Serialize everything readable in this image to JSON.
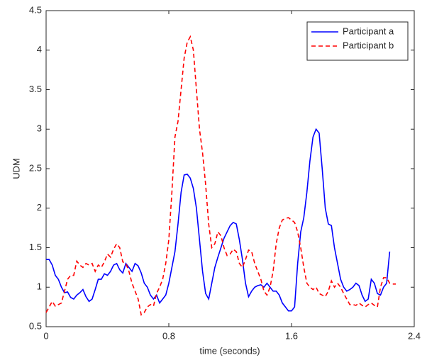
{
  "chart_data": {
    "type": "line",
    "x_label": "time (seconds)",
    "y_label": "UDM",
    "x": [
      0,
      0.02,
      0.04,
      0.06,
      0.08,
      0.1,
      0.12,
      0.14,
      0.16,
      0.18,
      0.2,
      0.22,
      0.24,
      0.26,
      0.28,
      0.3,
      0.32,
      0.34,
      0.36,
      0.38,
      0.4,
      0.42,
      0.44,
      0.46,
      0.48,
      0.5,
      0.52,
      0.54,
      0.56,
      0.58,
      0.6,
      0.62,
      0.64,
      0.66,
      0.68,
      0.7,
      0.72,
      0.74,
      0.76,
      0.78,
      0.8,
      0.82,
      0.84,
      0.86,
      0.88,
      0.9,
      0.92,
      0.94,
      0.96,
      0.98,
      1.0,
      1.02,
      1.04,
      1.06,
      1.08,
      1.1,
      1.12,
      1.14,
      1.16,
      1.18,
      1.2,
      1.22,
      1.24,
      1.26,
      1.28,
      1.3,
      1.32,
      1.34,
      1.36,
      1.38,
      1.4,
      1.42,
      1.44,
      1.46,
      1.48,
      1.5,
      1.52,
      1.54,
      1.56,
      1.58,
      1.6,
      1.62,
      1.64,
      1.66,
      1.68,
      1.7,
      1.72,
      1.74,
      1.76,
      1.78,
      1.8,
      1.82,
      1.84,
      1.86,
      1.88,
      1.9,
      1.92,
      1.94,
      1.96,
      1.98,
      2.0,
      2.02,
      2.04,
      2.06,
      2.08,
      2.1,
      2.12,
      2.14,
      2.16,
      2.18,
      2.2,
      2.22,
      2.24,
      2.26,
      2.28
    ],
    "series": [
      {
        "name": "Participant a",
        "color": "#0000ff",
        "dash": "solid",
        "values": [
          1.35,
          1.35,
          1.28,
          1.15,
          1.1,
          1.0,
          0.93,
          0.94,
          0.87,
          0.85,
          0.9,
          0.93,
          0.97,
          0.88,
          0.82,
          0.85,
          0.97,
          1.1,
          1.1,
          1.17,
          1.15,
          1.2,
          1.28,
          1.3,
          1.22,
          1.18,
          1.3,
          1.25,
          1.2,
          1.3,
          1.27,
          1.18,
          1.05,
          1.0,
          0.9,
          0.85,
          0.9,
          0.8,
          0.85,
          0.9,
          1.05,
          1.25,
          1.45,
          1.8,
          2.2,
          2.42,
          2.43,
          2.38,
          2.25,
          2.0,
          1.6,
          1.2,
          0.92,
          0.85,
          1.05,
          1.25,
          1.38,
          1.5,
          1.62,
          1.7,
          1.78,
          1.82,
          1.8,
          1.6,
          1.35,
          1.05,
          0.88,
          0.95,
          1.0,
          1.02,
          1.03,
          1.0,
          1.05,
          1.0,
          0.95,
          0.95,
          0.9,
          0.8,
          0.75,
          0.7,
          0.7,
          0.75,
          1.3,
          1.7,
          1.88,
          2.2,
          2.6,
          2.9,
          3.0,
          2.95,
          2.5,
          2.0,
          1.8,
          1.78,
          1.5,
          1.3,
          1.1,
          1.0,
          0.95,
          0.97,
          1.0,
          1.05,
          1.02,
          0.9,
          0.82,
          0.85,
          1.1,
          1.05,
          0.92,
          0.9,
          1.0,
          1.05,
          1.45,
          null,
          null
        ]
      },
      {
        "name": "Participant b",
        "color": "#ff0000",
        "dash": "dashed",
        "values": [
          0.68,
          0.75,
          0.82,
          0.76,
          0.78,
          0.8,
          0.95,
          1.1,
          1.15,
          1.15,
          1.33,
          1.28,
          1.25,
          1.3,
          1.28,
          1.3,
          1.2,
          1.28,
          1.25,
          1.32,
          1.42,
          1.38,
          1.48,
          1.55,
          1.5,
          1.32,
          1.3,
          1.2,
          1.05,
          0.95,
          0.85,
          0.65,
          0.68,
          0.75,
          0.78,
          0.76,
          0.92,
          1.0,
          1.1,
          1.3,
          1.6,
          2.2,
          2.9,
          3.1,
          3.5,
          3.9,
          4.1,
          4.17,
          4.0,
          3.5,
          3.0,
          2.7,
          2.3,
          1.8,
          1.5,
          1.55,
          1.7,
          1.65,
          1.5,
          1.4,
          1.42,
          1.48,
          1.45,
          1.3,
          1.25,
          1.35,
          1.47,
          1.45,
          1.3,
          1.2,
          1.1,
          0.95,
          0.9,
          1.0,
          1.2,
          1.55,
          1.75,
          1.85,
          1.87,
          1.88,
          1.85,
          1.82,
          1.7,
          1.5,
          1.25,
          1.05,
          1.0,
          0.97,
          1.0,
          0.92,
          0.9,
          0.88,
          0.95,
          1.08,
          1.0,
          1.05,
          1.0,
          0.92,
          0.85,
          0.78,
          0.78,
          0.77,
          0.8,
          0.77,
          0.75,
          0.78,
          0.8,
          0.77,
          0.75,
          1.0,
          1.12,
          1.12,
          1.05,
          1.04,
          1.04
        ]
      }
    ],
    "xlim": [
      0,
      2.4
    ],
    "xticks": [
      0,
      0.8,
      1.6,
      2.4
    ],
    "ylim": [
      0.5,
      4.5
    ],
    "yticks": [
      0.5,
      1,
      1.5,
      2,
      2.5,
      3,
      3.5,
      4,
      4.5
    ],
    "grid": false,
    "legend": "top-right"
  }
}
